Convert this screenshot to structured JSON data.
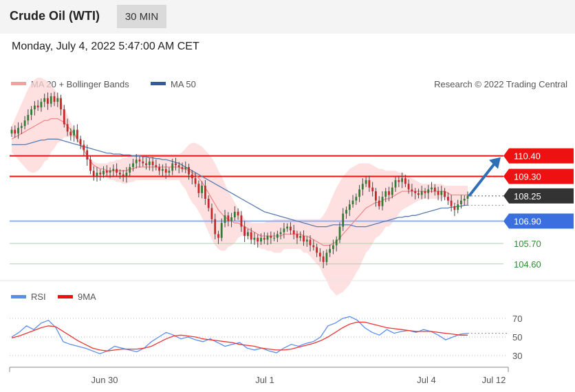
{
  "header": {
    "title": "Crude Oil (WTI)",
    "timeframe": "30 MIN"
  },
  "datetime": "Monday, July 4, 2022 5:47:00 AM CET",
  "legend": {
    "ma20": "MA 20 + Bollinger Bands",
    "ma50": "MA 50",
    "credit": "Research © 2022 Trading Central"
  },
  "rsi_legend": {
    "rsi": "RSI",
    "ma9": "9MA"
  },
  "colors": {
    "resistance": "#ee1111",
    "support": "#3b6fe0",
    "support_green": "#7cc07c",
    "candle_up": "#2e7d32",
    "candle_down": "#c62828",
    "ma20": "#f28b8b",
    "ma50": "#5a7bb0",
    "band": "#ffd6d6",
    "arrow": "#2f6fb5"
  },
  "chart_data": [
    {
      "type": "candlestick",
      "title": "Crude Oil (WTI)",
      "timeframe": "30 MIN",
      "x_ticks": [
        "Jun 30",
        "Jul 1",
        "Jul 4",
        "Jul 12"
      ],
      "ylim": [
        104.0,
        112.0
      ],
      "levels": [
        {
          "value": 110.4,
          "label": "110.40",
          "style": "resistance"
        },
        {
          "value": 109.3,
          "label": "109.30",
          "style": "resistance"
        },
        {
          "value": 108.25,
          "label": "108.25",
          "style": "last"
        },
        {
          "value": 106.9,
          "label": "106.90",
          "style": "pivot"
        },
        {
          "value": 105.7,
          "label": "105.70",
          "style": "support"
        },
        {
          "value": 104.6,
          "label": "104.60",
          "style": "support"
        }
      ],
      "close": [
        111.8,
        111.6,
        111.9,
        112.0,
        112.3,
        112.6,
        112.9,
        113.1,
        113.0,
        113.3,
        113.5,
        113.2,
        113.6,
        113.3,
        113.5,
        112.9,
        112.1,
        111.7,
        111.5,
        111.8,
        111.3,
        111.0,
        110.7,
        110.2,
        109.6,
        109.3,
        109.5,
        109.4,
        109.6,
        109.5,
        109.6,
        109.7,
        109.5,
        109.4,
        109.3,
        109.5,
        109.8,
        110.0,
        110.2,
        110.1,
        110.0,
        109.9,
        110.1,
        109.9,
        109.8,
        109.6,
        109.7,
        109.5,
        109.6,
        110.0,
        109.9,
        109.8,
        109.7,
        109.8,
        109.4,
        109.2,
        108.9,
        108.4,
        108.8,
        108.1,
        107.6,
        107.0,
        106.2,
        106.0,
        106.8,
        107.2,
        106.9,
        107.1,
        107.4,
        107.2,
        106.6,
        106.1,
        106.3,
        105.9,
        106.0,
        105.8,
        106.0,
        105.9,
        106.1,
        106.0,
        106.0,
        106.2,
        106.3,
        106.5,
        106.6,
        106.4,
        106.2,
        106.0,
        106.1,
        105.8,
        105.9,
        105.6,
        105.5,
        105.2,
        105.0,
        104.7,
        105.2,
        105.4,
        105.6,
        105.9,
        106.6,
        107.3,
        107.5,
        107.8,
        108.0,
        108.2,
        108.6,
        108.9,
        109.1,
        108.7,
        108.5,
        108.0,
        107.7,
        108.2,
        108.5,
        108.3,
        108.7,
        109.1,
        109.0,
        109.2,
        108.9,
        108.6,
        108.5,
        108.4,
        108.3,
        108.5,
        108.4,
        108.6,
        108.7,
        108.5,
        108.3,
        108.5,
        108.2,
        108.0,
        107.7,
        107.5,
        107.8,
        108.0,
        108.1,
        108.25
      ],
      "ma20": [
        111.3,
        111.4,
        111.5,
        111.6,
        111.7,
        111.8,
        111.9,
        112.0,
        112.1,
        112.2,
        112.3,
        112.3,
        112.4,
        112.4,
        112.4,
        112.3,
        112.2,
        112.0,
        111.8,
        111.6,
        111.3,
        111.0,
        110.7,
        110.4,
        110.1,
        109.9,
        109.8,
        109.7,
        109.7,
        109.6,
        109.6,
        109.6,
        109.6,
        109.6,
        109.6,
        109.6,
        109.7,
        109.7,
        109.8,
        109.8,
        109.8,
        109.8,
        109.8,
        109.8,
        109.8,
        109.8,
        109.8,
        109.8,
        109.8,
        109.8,
        109.8,
        109.8,
        109.7,
        109.7,
        109.6,
        109.5,
        109.4,
        109.2,
        109.0,
        108.7,
        108.4,
        108.1,
        107.8,
        107.5,
        107.3,
        107.1,
        107.0,
        106.9,
        106.8,
        106.8,
        106.7,
        106.6,
        106.5,
        106.4,
        106.3,
        106.2,
        106.1,
        106.1,
        106.1,
        106.1,
        106.1,
        106.1,
        106.1,
        106.2,
        106.2,
        106.2,
        106.2,
        106.2,
        106.2,
        106.1,
        106.1,
        106.0,
        105.9,
        105.8,
        105.7,
        105.6,
        105.6,
        105.6,
        105.7,
        105.8,
        106.0,
        106.2,
        106.4,
        106.6,
        106.8,
        107.0,
        107.2,
        107.4,
        107.6,
        107.7,
        107.8,
        107.9,
        107.9,
        108.0,
        108.1,
        108.1,
        108.2,
        108.3,
        108.4,
        108.5,
        108.5,
        108.5,
        108.5,
        108.5,
        108.5,
        108.5,
        108.5,
        108.5,
        108.5,
        108.5,
        108.5,
        108.5,
        108.5,
        108.4,
        108.3,
        108.3,
        108.3,
        108.3,
        108.3,
        108.3
      ],
      "upper_band": [
        112.0,
        112.4,
        112.8,
        113.2,
        113.6,
        114.0,
        114.3,
        114.5,
        114.6,
        114.6,
        114.5,
        114.4,
        114.2,
        114.0,
        113.7,
        113.4,
        113.0,
        112.6,
        112.2,
        111.8,
        111.4,
        111.0,
        110.7,
        110.4,
        110.2,
        110.1,
        110.0,
        110.0,
        110.0,
        110.0,
        110.1,
        110.1,
        110.2,
        110.2,
        110.3,
        110.3,
        110.4,
        110.4,
        110.5,
        110.5,
        110.5,
        110.5,
        110.5,
        110.5,
        110.5,
        110.5,
        110.5,
        110.5,
        110.5,
        110.5,
        110.5,
        110.5,
        110.6,
        110.8,
        111.0,
        111.1,
        111.1,
        111.0,
        110.9,
        110.7,
        110.5,
        110.3,
        110.0,
        109.6,
        109.3,
        108.9,
        108.5,
        108.2,
        107.9,
        107.6,
        107.3,
        107.0,
        106.9,
        106.8,
        106.8,
        106.8,
        106.8,
        106.8,
        106.9,
        106.9,
        107.0,
        107.0,
        107.0,
        107.0,
        107.0,
        107.0,
        107.0,
        107.0,
        107.0,
        107.0,
        107.0,
        107.0,
        107.0,
        107.0,
        107.0,
        107.2,
        107.5,
        107.9,
        108.3,
        108.7,
        109.0,
        109.3,
        109.5,
        109.7,
        109.8,
        109.9,
        110.0,
        110.0,
        110.0,
        110.0,
        109.9,
        109.8,
        109.7,
        109.7,
        109.6,
        109.6,
        109.6,
        109.6,
        109.5,
        109.5,
        109.4,
        109.3,
        109.2,
        109.1,
        109.0,
        108.9,
        108.9,
        108.9,
        108.9,
        108.9,
        108.9,
        108.9,
        108.8,
        108.8,
        108.8,
        108.8,
        108.8,
        108.8,
        108.8,
        108.8
      ],
      "lower_band": [
        110.6,
        110.4,
        110.2,
        110.0,
        109.8,
        109.6,
        109.5,
        109.5,
        109.6,
        109.8,
        110.1,
        110.2,
        110.6,
        110.8,
        111.1,
        111.2,
        111.4,
        111.4,
        111.4,
        111.4,
        111.2,
        111.0,
        110.7,
        110.4,
        110.0,
        109.7,
        109.6,
        109.4,
        109.4,
        109.2,
        109.1,
        109.1,
        109.0,
        109.0,
        108.9,
        108.9,
        109.0,
        109.0,
        109.1,
        109.1,
        109.1,
        109.1,
        109.1,
        109.1,
        109.1,
        109.1,
        109.1,
        109.1,
        109.1,
        109.1,
        109.1,
        109.1,
        108.8,
        108.6,
        108.2,
        107.9,
        107.7,
        107.4,
        107.1,
        106.7,
        106.3,
        105.9,
        105.6,
        105.4,
        105.3,
        105.3,
        105.5,
        105.6,
        105.7,
        106.0,
        106.1,
        106.2,
        106.1,
        106.0,
        105.8,
        105.6,
        105.4,
        105.4,
        105.3,
        105.3,
        105.2,
        105.2,
        105.2,
        105.4,
        105.4,
        105.4,
        105.4,
        105.4,
        105.4,
        105.2,
        105.2,
        105.0,
        104.8,
        104.6,
        104.4,
        104.0,
        103.7,
        103.3,
        103.1,
        102.9,
        103.0,
        103.1,
        103.3,
        103.5,
        103.8,
        104.1,
        104.4,
        104.8,
        105.2,
        105.4,
        105.7,
        106.0,
        106.1,
        106.3,
        106.6,
        106.6,
        106.8,
        107.0,
        107.3,
        107.5,
        107.6,
        107.7,
        107.8,
        107.9,
        108.0,
        108.1,
        108.1,
        108.1,
        108.1,
        108.1,
        108.1,
        108.1,
        108.2,
        108.0,
        107.8,
        107.8,
        107.8,
        107.8,
        107.8,
        107.8
      ],
      "ma50": [
        111.0,
        111.0,
        111.0,
        111.0,
        111.0,
        111.05,
        111.1,
        111.15,
        111.2,
        111.25,
        111.25,
        111.3,
        111.3,
        111.3,
        111.3,
        111.25,
        111.2,
        111.15,
        111.1,
        111.05,
        111.0,
        110.95,
        110.9,
        110.85,
        110.8,
        110.75,
        110.7,
        110.65,
        110.6,
        110.55,
        110.55,
        110.5,
        110.5,
        110.5,
        110.45,
        110.45,
        110.45,
        110.4,
        110.4,
        110.4,
        110.35,
        110.35,
        110.3,
        110.3,
        110.25,
        110.25,
        110.2,
        110.2,
        110.15,
        110.1,
        110.05,
        110.0,
        109.9,
        109.8,
        109.7,
        109.6,
        109.5,
        109.4,
        109.3,
        109.2,
        109.1,
        109.0,
        108.9,
        108.8,
        108.7,
        108.6,
        108.5,
        108.4,
        108.3,
        108.2,
        108.1,
        108.0,
        107.9,
        107.8,
        107.7,
        107.6,
        107.5,
        107.4,
        107.35,
        107.3,
        107.25,
        107.2,
        107.15,
        107.1,
        107.05,
        107.0,
        106.95,
        106.9,
        106.85,
        106.8,
        106.75,
        106.7,
        106.65,
        106.6,
        106.6,
        106.6,
        106.6,
        106.65,
        106.7,
        106.7,
        106.7,
        106.7,
        106.7,
        106.7,
        106.65,
        106.6,
        106.6,
        106.6,
        106.6,
        106.65,
        106.7,
        106.75,
        106.8,
        106.85,
        106.9,
        106.95,
        107.0,
        107.05,
        107.1,
        107.1,
        107.15,
        107.15,
        107.2,
        107.2,
        107.25,
        107.3,
        107.35,
        107.4,
        107.45,
        107.5,
        107.55,
        107.6,
        107.6,
        107.6,
        107.65,
        107.65,
        107.7,
        107.7,
        107.75,
        107.75
      ]
    },
    {
      "type": "line",
      "title": "RSI",
      "series": [
        {
          "name": "RSI",
          "values": [
            50,
            55,
            62,
            58,
            65,
            68,
            60,
            45,
            42,
            40,
            38,
            35,
            32,
            35,
            40,
            38,
            36,
            34,
            38,
            45,
            50,
            55,
            52,
            48,
            50,
            47,
            45,
            48,
            44,
            40,
            42,
            44,
            38,
            36,
            38,
            35,
            33,
            38,
            42,
            40,
            43,
            45,
            50,
            62,
            65,
            70,
            72,
            68,
            60,
            55,
            52,
            58,
            54,
            56,
            57,
            55,
            58,
            56,
            52,
            47,
            50,
            53,
            54
          ]
        },
        {
          "name": "9MA",
          "values": [
            49,
            51,
            54,
            57,
            60,
            62,
            61,
            56,
            51,
            46,
            42,
            38,
            36,
            35,
            36,
            37,
            37,
            37,
            38,
            40,
            44,
            48,
            51,
            52,
            51,
            50,
            48,
            47,
            46,
            45,
            44,
            42,
            41,
            40,
            38,
            37,
            36,
            36,
            37,
            39,
            41,
            43,
            46,
            50,
            55,
            60,
            64,
            66,
            66,
            64,
            62,
            60,
            59,
            58,
            57,
            56,
            56,
            56,
            55,
            54,
            53,
            52,
            52
          ]
        }
      ],
      "y_ticks": [
        70,
        50,
        30
      ],
      "ylim": [
        20,
        80
      ]
    }
  ]
}
